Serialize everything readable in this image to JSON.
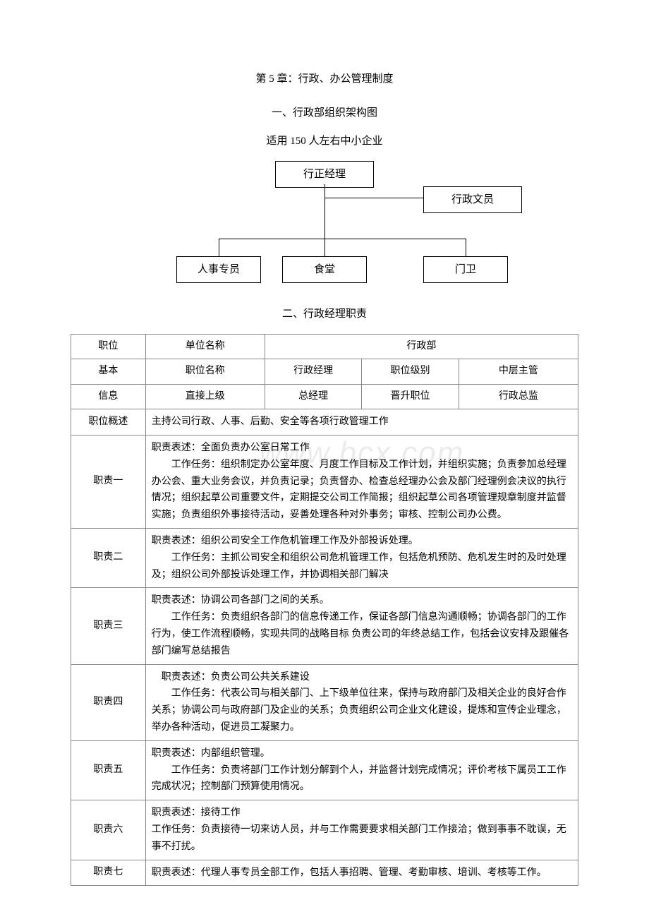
{
  "title": "第 5 章：行政、办公管理制度",
  "subtitle": "一、行政部组织架构图",
  "caption": "适用 150 人左右中小企业",
  "section2_title": "二、行政经理职责",
  "watermark": "www.bcx.com",
  "org": {
    "top": "行正经理",
    "right": "行政文员",
    "b1": "人事专员",
    "b2": "食堂",
    "b3": "门卫",
    "box_border": "#000000",
    "line_color": "#000000"
  },
  "table": {
    "r1_c1": "职位",
    "r1_c2": "单位名称",
    "r1_c3": "行政部",
    "r2_c1": "基本",
    "r2_c2": "职位名称",
    "r2_c3": "行政经理",
    "r2_c4": "职位级别",
    "r2_c5": "中层主管",
    "r3_c1": "信息",
    "r3_c2": "直接上级",
    "r3_c3": "总经理",
    "r3_c4": "晋升职位",
    "r3_c5": "行政总监",
    "overview_label": "职位概述",
    "overview_text": "主持公司行政、人事、后勤、安全等各项行政管理工作",
    "d1_label": "职责一",
    "d1_text": "职责表述：全面负责办公室日常工作\n　　工作任务：组织制定办公室年度、月度工作目标及工作计划，并组织实施；负责参加总经理办公会、重大业务会议，并负责记录；负责督办、检查总经理办公会及部门经理例会决议的执行情况；组织起草公司重要文件，定期提交公司工作简报；组织起草公司各项管理规章制度并监督实施；负责组织外事接待活动，妥善处理各种对外事务；审核、控制公司办公费。",
    "d2_label": "职责二",
    "d2_text": "职责表述：组织公司安全工作危机管理工作及外部投诉处理。\n　　工作任务：主抓公司安全和组织公司危机管理工作，包括危机预防、危机发生时的及时处理及；组织公司外部投诉处理工作，并协调相关部门解决",
    "d3_label": "职责三",
    "d3_text": "职责表述：协调公司各部门之间的关系。\n　　工作任务：负责组织各部门的信息传递工作，保证各部门信息沟通顺畅；协调各部门的工作行为，使工作流程顺畅，实现共同的战略目标 负责公司的年终总结工作，包括会议安排及跟催各部门编写总结报告",
    "d4_label": "职责四",
    "d4_text": "　职责表述：负责公司公共关系建设\n　　工作任务：代表公司与相关部门、上下级单位往来，保持与政府部门及相关企业的良好合作关系；协调公司与政府部门及企业的关系；负责组织公司企业文化建设，提炼和宣传企业理念，举办各种活动，促进员工凝聚力。",
    "d5_label": "职责五",
    "d5_text": "职责表述：内部组织管理。\n　　工作任务：负责将部门工作计划分解到个人，并监督计划完成情况；评价考核下属员工工作完成状况；控制部门预算使用情况。",
    "d6_label": "职责六",
    "d6_text": "职责表述：接待工作\n工作任务：负责接待一切来访人员，并与工作需要要求相关部门工作接洽；做到事事不耽误，无事不打扰。",
    "d7_label": "职责七",
    "d7_text": "职责表述：代理人事专员全部工作，包括人事招聘、管理、考勤审核、培训、考核等工作。"
  }
}
